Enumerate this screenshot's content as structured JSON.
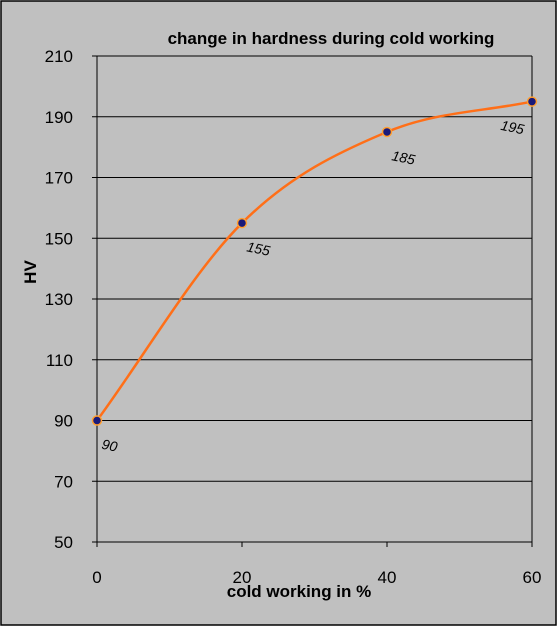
{
  "chart_data": {
    "type": "line",
    "title": "change in hardness during cold working",
    "xlabel": "cold working in %",
    "ylabel": "HV",
    "x": [
      0,
      20,
      40,
      60
    ],
    "series": [
      {
        "values": [
          90,
          155,
          185,
          195
        ],
        "labels": [
          "90",
          "155",
          "185",
          "195"
        ]
      }
    ],
    "xlim": [
      0,
      60
    ],
    "ylim": [
      50,
      210
    ],
    "xticks": [
      "0",
      "20",
      "40",
      "60"
    ],
    "yticks": [
      "50",
      "70",
      "90",
      "110",
      "130",
      "150",
      "170",
      "190",
      "210"
    ],
    "grid": "horizontal",
    "smoothed": true,
    "colors": {
      "background": "#c0c0c0",
      "line": "#ff6f18",
      "marker_fill": "#1a1a7a",
      "marker_edge": "#ff9f30",
      "grid": "#000000"
    }
  }
}
